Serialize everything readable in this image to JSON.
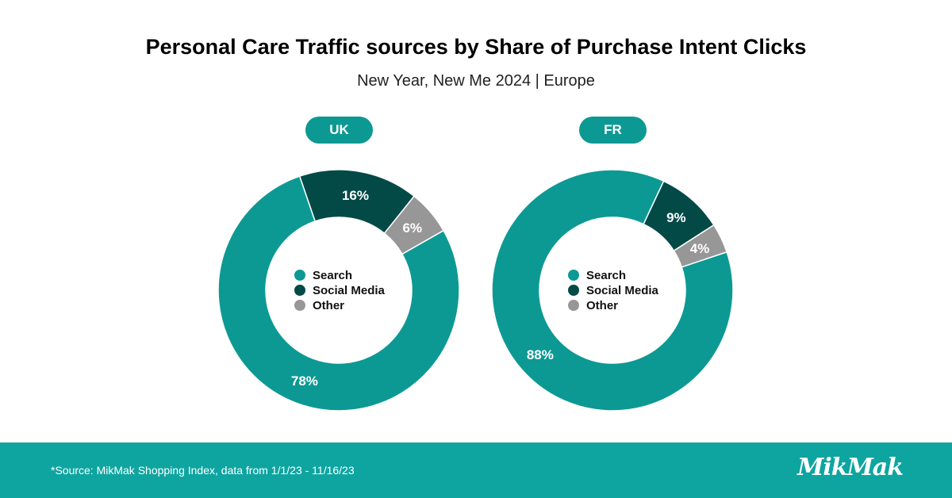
{
  "title": "Personal Care Traffic sources by Share of Purchase Intent Clicks",
  "subtitle": "New Year, New Me 2024 | Europe",
  "footer": {
    "source": "*Source: MikMak Shopping Index, data from 1/1/23 - 11/16/23",
    "logo": "MikMak"
  },
  "colors": {
    "search": "#0d9993",
    "social_media": "#034a47",
    "other": "#979797",
    "footer": "#0ea5a0"
  },
  "chart_data": [
    {
      "type": "pie",
      "title": "UK",
      "categories": [
        "Search",
        "Social Media",
        "Other"
      ],
      "values": [
        78,
        16,
        6
      ],
      "labels": [
        "78%",
        "16%",
        "6%"
      ],
      "legend": "center"
    },
    {
      "type": "pie",
      "title": "FR",
      "categories": [
        "Search",
        "Social Media",
        "Other"
      ],
      "values": [
        88,
        9,
        4
      ],
      "labels": [
        "88%",
        "9%",
        "4%"
      ],
      "legend": "center"
    }
  ]
}
